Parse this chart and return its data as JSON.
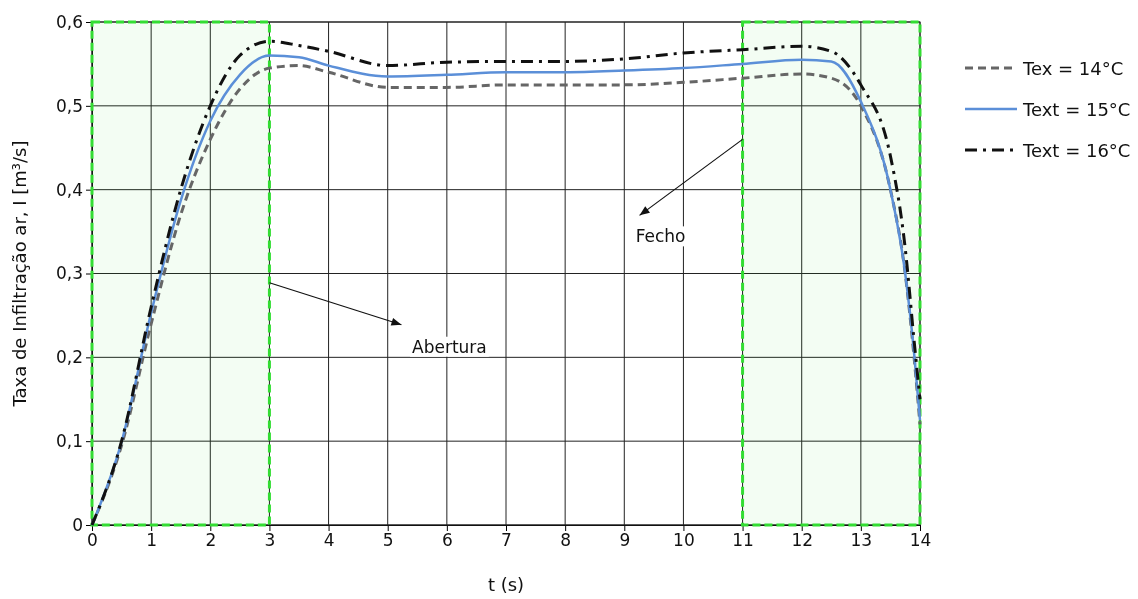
{
  "chart_data": {
    "type": "line",
    "xlabel": "t (s)",
    "ylabel": "Taxa de Infiltração ar, I [m³/s]",
    "xlim": [
      0,
      14
    ],
    "xticks": [
      0,
      1,
      2,
      3,
      4,
      5,
      6,
      7,
      8,
      9,
      10,
      11,
      12,
      13,
      14
    ],
    "ylim": [
      0,
      0.6
    ],
    "yticks": [
      0,
      {
        "value": 0.1,
        "label": "0,1"
      },
      {
        "value": 0.2,
        "label": "0,2"
      },
      {
        "value": 0.3,
        "label": "0,3"
      },
      {
        "value": 0.4,
        "label": "0,4"
      },
      {
        "value": 0.5,
        "label": "0,5"
      },
      {
        "value": 0.6,
        "label": "0,6"
      }
    ],
    "grid": true,
    "legend": "right",
    "marker": "none",
    "x": [
      0,
      0.5,
      1,
      1.5,
      2,
      2.5,
      3,
      3.5,
      4,
      5,
      6,
      7,
      8,
      9,
      10,
      11,
      12,
      12.5,
      13,
      13.5,
      13.75,
      13.9,
      14
    ],
    "series": [
      {
        "name": "Tex = 14°C",
        "color": "#666666",
        "line_style": "dashed",
        "values": [
          0,
          0.095,
          0.24,
          0.37,
          0.46,
          0.52,
          0.545,
          0.548,
          0.54,
          0.522,
          0.522,
          0.525,
          0.525,
          0.525,
          0.528,
          0.533,
          0.538,
          0.533,
          0.5,
          0.4,
          0.3,
          0.2,
          0.12
        ]
      },
      {
        "name": "Text = 15°C",
        "color": "#5b8fd8",
        "line_style": "solid",
        "values": [
          0,
          0.099,
          0.253,
          0.387,
          0.482,
          0.537,
          0.56,
          0.558,
          0.548,
          0.535,
          0.537,
          0.54,
          0.54,
          0.542,
          0.545,
          0.55,
          0.555,
          0.553,
          0.505,
          0.4,
          0.3,
          0.205,
          0.125
        ]
      },
      {
        "name": "Text = 16°C",
        "color": "#111111",
        "line_style": "dashdot",
        "values": [
          0,
          0.1,
          0.26,
          0.4,
          0.5,
          0.56,
          0.577,
          0.572,
          0.565,
          0.548,
          0.552,
          0.553,
          0.553,
          0.556,
          0.563,
          0.567,
          0.571,
          0.565,
          0.525,
          0.44,
          0.33,
          0.22,
          0.15
        ]
      }
    ],
    "bands": [
      {
        "axis": "x",
        "from": 0,
        "to": 3,
        "color": "#33dd33"
      },
      {
        "axis": "x",
        "from": 11,
        "to": 14,
        "color": "#33dd33"
      }
    ],
    "annotations": [
      {
        "text": "Abertura",
        "x": 3,
        "y": 0.289
      },
      {
        "text": "Fecho",
        "x": 11,
        "y": 0.46
      }
    ]
  }
}
